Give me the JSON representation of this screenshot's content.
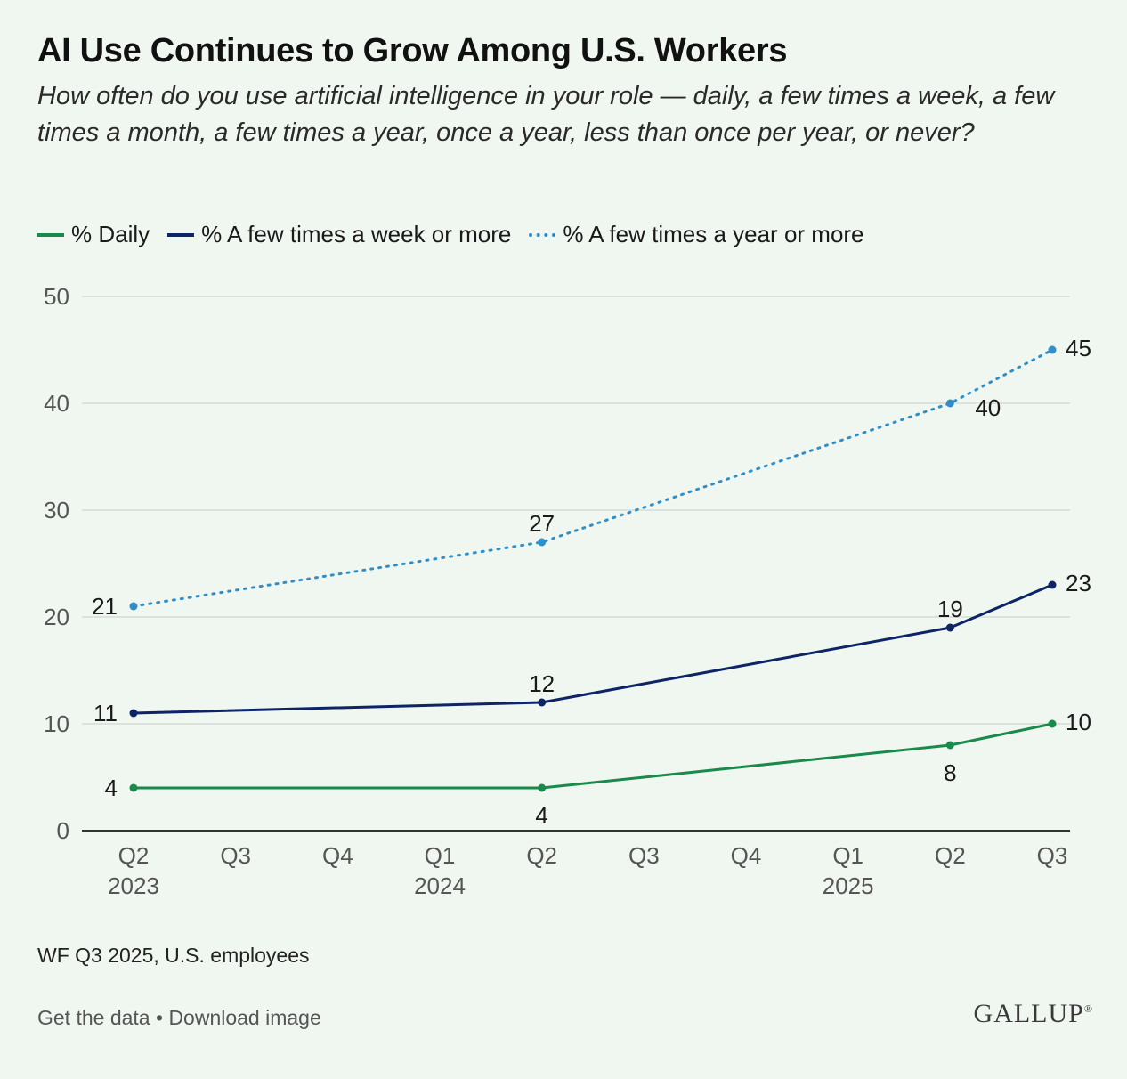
{
  "header": {
    "title": "AI Use Continues to Grow Among U.S. Workers",
    "subtitle": "How often do you use artificial intelligence in your role — daily, a few times a week, a few times a month, a few times a year, once a year, less than once per year, or never?"
  },
  "legend": [
    {
      "label": "% Daily",
      "color": "#1a8a4a",
      "style": "solid"
    },
    {
      "label": "% A few times a week or more",
      "color": "#0d2466",
      "style": "solid"
    },
    {
      "label": "% A few times a year or more",
      "color": "#2f8fc6",
      "style": "dotted"
    }
  ],
  "chart_data": {
    "type": "line",
    "categories": [
      "Q2 2023",
      "Q3 2023",
      "Q4 2023",
      "Q1 2024",
      "Q2 2024",
      "Q3 2024",
      "Q4 2024",
      "Q1 2025",
      "Q2 2025",
      "Q3 2025"
    ],
    "tick_labels": [
      {
        "top": "Q2",
        "bottom": "2023"
      },
      {
        "top": "Q3",
        "bottom": ""
      },
      {
        "top": "Q4",
        "bottom": ""
      },
      {
        "top": "Q1",
        "bottom": "2024"
      },
      {
        "top": "Q2",
        "bottom": ""
      },
      {
        "top": "Q3",
        "bottom": ""
      },
      {
        "top": "Q4",
        "bottom": ""
      },
      {
        "top": "Q1",
        "bottom": "2025"
      },
      {
        "top": "Q2",
        "bottom": ""
      },
      {
        "top": "Q3",
        "bottom": ""
      }
    ],
    "ylim": [
      0,
      50
    ],
    "yticks": [
      0,
      10,
      20,
      30,
      40,
      50
    ],
    "grid": true,
    "legend_position": "top-left",
    "series": [
      {
        "name": "% Daily",
        "color": "#1a8a4a",
        "style": "solid",
        "points": [
          {
            "x": "Q2 2023",
            "y": 4,
            "label": "4",
            "label_pos": "left"
          },
          {
            "x": "Q2 2024",
            "y": 4,
            "label": "4",
            "label_pos": "below"
          },
          {
            "x": "Q2 2025",
            "y": 8,
            "label": "8",
            "label_pos": "below"
          },
          {
            "x": "Q3 2025",
            "y": 10,
            "label": "10",
            "label_pos": "right"
          }
        ]
      },
      {
        "name": "% A few times a week or more",
        "color": "#0d2466",
        "style": "solid",
        "points": [
          {
            "x": "Q2 2023",
            "y": 11,
            "label": "11",
            "label_pos": "left"
          },
          {
            "x": "Q2 2024",
            "y": 12,
            "label": "12",
            "label_pos": "above"
          },
          {
            "x": "Q2 2025",
            "y": 19,
            "label": "19",
            "label_pos": "above"
          },
          {
            "x": "Q3 2025",
            "y": 23,
            "label": "23",
            "label_pos": "right"
          }
        ]
      },
      {
        "name": "% A few times a year or more",
        "color": "#2f8fc6",
        "style": "dotted",
        "points": [
          {
            "x": "Q2 2023",
            "y": 21,
            "label": "21",
            "label_pos": "left"
          },
          {
            "x": "Q2 2024",
            "y": 27,
            "label": "27",
            "label_pos": "above"
          },
          {
            "x": "Q2 2025",
            "y": 40,
            "label": "40",
            "label_pos": "below-right"
          },
          {
            "x": "Q3 2025",
            "y": 45,
            "label": "45",
            "label_pos": "right"
          }
        ]
      }
    ]
  },
  "note": "WF Q3 2025, U.S. employees",
  "footer": {
    "get_data": "Get the data",
    "separator": " • ",
    "download": "Download image"
  },
  "brand": "GALLUP"
}
